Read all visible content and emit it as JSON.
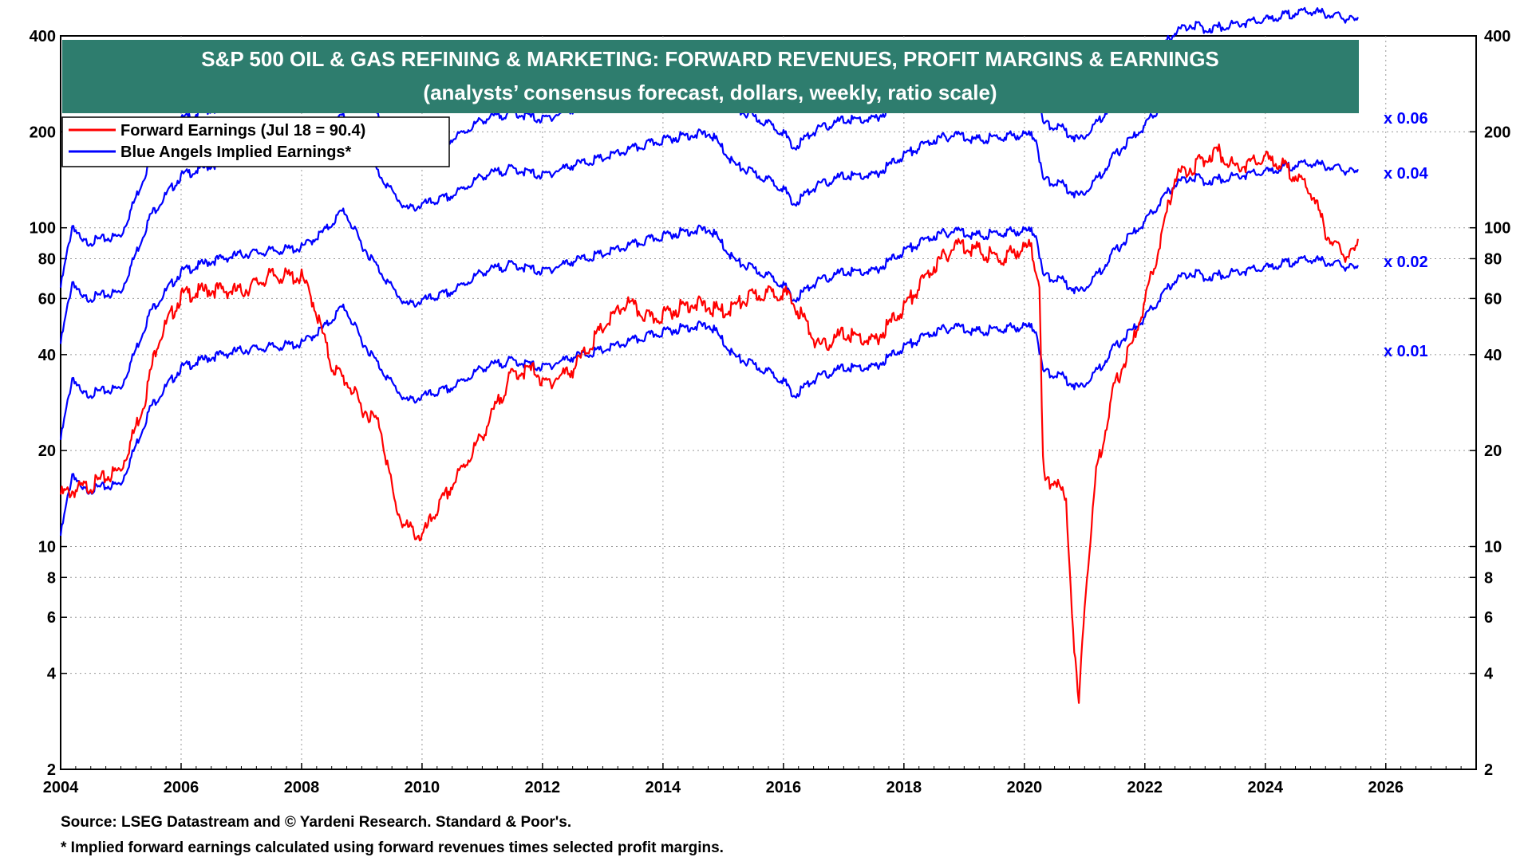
{
  "chart_data": {
    "type": "line",
    "title": "S&P 500 OIL & GAS REFINING & MARKETING: FORWARD REVENUES, PROFIT MARGINS & EARNINGS",
    "subtitle": "(analysts’ consensus forecast, dollars, weekly, ratio scale)",
    "y_scale": "log",
    "ylim": [
      2,
      400
    ],
    "xlim": [
      2004,
      2027.5
    ],
    "y_ticks": [
      2,
      4,
      6,
      8,
      10,
      20,
      40,
      60,
      80,
      100,
      200,
      400
    ],
    "x_ticks": [
      2004,
      2006,
      2008,
      2010,
      2012,
      2014,
      2016,
      2018,
      2020,
      2022,
      2024,
      2026
    ],
    "grid": true,
    "legend_position": "top-left",
    "legend": [
      {
        "label": "Forward Earnings (Jul 18 = 90.4)",
        "color": "#ff0000"
      },
      {
        "label": "Blue Angels Implied Earnings*",
        "color": "#0000ff"
      }
    ],
    "forward_revenues_base": {
      "x": [
        2004.0,
        2004.2,
        2004.35,
        2005.0,
        2005.5,
        2006.0,
        2006.5,
        2007.0,
        2007.5,
        2008.0,
        2008.4,
        2008.7,
        2009.0,
        2009.5,
        2009.75,
        2010.0,
        2010.5,
        2011.0,
        2011.5,
        2012.0,
        2012.5,
        2013.0,
        2013.5,
        2014.0,
        2014.5,
        2014.8,
        2015.2,
        2015.6,
        2016.0,
        2016.15,
        2016.5,
        2017.0,
        2017.5,
        2018.0,
        2018.5,
        2018.9,
        2019.2,
        2019.6,
        2020.0,
        2020.2,
        2020.3,
        2020.6,
        2020.9,
        2021.2,
        2021.5,
        2022.0,
        2022.5,
        2022.8,
        2023.0,
        2023.5,
        2024.0,
        2024.5,
        2024.8,
        2025.2,
        2025.55
      ],
      "values": [
        1100,
        1750,
        1520,
        1600,
        2800,
        3700,
        4000,
        4200,
        4300,
        4400,
        5000,
        5800,
        4500,
        3300,
        2900,
        3000,
        3200,
        3700,
        3900,
        3700,
        4000,
        4200,
        4500,
        4800,
        5000,
        5000,
        4000,
        3700,
        3400,
        3000,
        3400,
        3700,
        3700,
        4300,
        4800,
        5000,
        4800,
        4900,
        5000,
        4900,
        3600,
        3500,
        3200,
        3600,
        4300,
        5300,
        7000,
        7400,
        7100,
        7400,
        7600,
        8000,
        8100,
        7800,
        7500
      ]
    },
    "series": [
      {
        "name": "Blue Angels Implied Earnings* x 0.06",
        "multiplier": 0.06,
        "color": "#0000ff"
      },
      {
        "name": "Blue Angels Implied Earnings* x 0.04",
        "multiplier": 0.04,
        "color": "#0000ff"
      },
      {
        "name": "Blue Angels Implied Earnings* x 0.02",
        "multiplier": 0.02,
        "color": "#0000ff"
      },
      {
        "name": "Blue Angels Implied Earnings* x 0.01",
        "multiplier": 0.01,
        "color": "#0000ff"
      },
      {
        "name": "Forward Earnings (Jul 18 = 90.4)",
        "color": "#ff0000",
        "x": [
          2004.0,
          2004.5,
          2005.0,
          2005.2,
          2005.4,
          2005.6,
          2006.0,
          2006.5,
          2007.0,
          2007.5,
          2008.0,
          2008.2,
          2008.5,
          2008.8,
          2009.0,
          2009.3,
          2009.55,
          2009.7,
          2010.0,
          2010.2,
          2010.5,
          2011.0,
          2011.5,
          2011.9,
          2012.0,
          2012.5,
          2013.0,
          2013.4,
          2013.8,
          2014.0,
          2014.5,
          2015.0,
          2015.5,
          2016.0,
          2016.3,
          2016.6,
          2017.0,
          2017.5,
          2018.0,
          2018.5,
          2018.9,
          2019.2,
          2019.6,
          2019.9,
          2020.1,
          2020.25,
          2020.3,
          2020.35,
          2020.5,
          2020.7,
          2020.8,
          2020.9,
          2021.0,
          2021.2,
          2021.5,
          2021.8,
          2022.0,
          2022.3,
          2022.5,
          2022.8,
          2023.0,
          2023.2,
          2023.5,
          2023.8,
          2024.0,
          2024.2,
          2024.5,
          2024.8,
          2025.0,
          2025.2,
          2025.4,
          2025.55
        ],
        "values": [
          15,
          16,
          18,
          23,
          30,
          45,
          63,
          66,
          65,
          73,
          72,
          60,
          38,
          33,
          28,
          25,
          14,
          12,
          11,
          13,
          16,
          23,
          36,
          37,
          33,
          37,
          50,
          60,
          53,
          55,
          60,
          56,
          63,
          65,
          55,
          43,
          48,
          45,
          58,
          78,
          92,
          88,
          82,
          88,
          90,
          70,
          20,
          16,
          17,
          14,
          6,
          3.2,
          7,
          18,
          33,
          45,
          60,
          100,
          150,
          160,
          170,
          180,
          160,
          165,
          170,
          165,
          150,
          130,
          100,
          88,
          83,
          90.4
        ]
      }
    ],
    "multiplier_labels": [
      "x 0.06",
      "x 0.04",
      "x 0.02",
      "x 0.01"
    ]
  },
  "footer": {
    "source": "Source: LSEG Datastream and © Yardeni Research. Standard & Poor's.",
    "note": "* Implied forward earnings calculated using forward revenues times selected profit margins."
  }
}
